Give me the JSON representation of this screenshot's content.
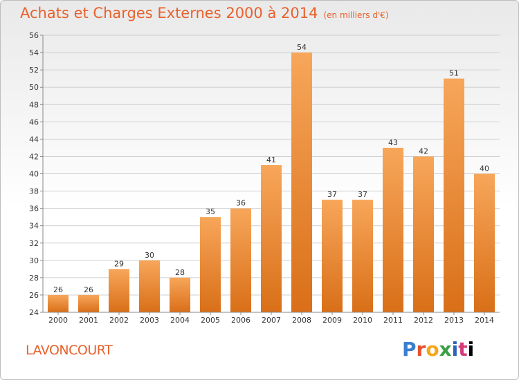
{
  "header": {
    "title": "Achats et Charges Externes 2000 à 2014",
    "subtitle": "(en milliers d'€)"
  },
  "footer": {
    "place": "LAVONCOURT",
    "logo_letters": [
      "P",
      "r",
      "o",
      "x",
      "i",
      "t",
      "i"
    ]
  },
  "colors": {
    "bar_top": "#f7a65a",
    "bar_bottom": "#d96f18",
    "title": "#e8612c",
    "grid": "#cfcfcf"
  },
  "chart_data": {
    "type": "bar",
    "title": "Achats et Charges Externes 2000 à 2014",
    "subtitle": "(en milliers d'€)",
    "xlabel": "",
    "ylabel": "",
    "categories": [
      "2000",
      "2001",
      "2002",
      "2003",
      "2004",
      "2005",
      "2006",
      "2007",
      "2008",
      "2009",
      "2010",
      "2011",
      "2012",
      "2013",
      "2014"
    ],
    "values": [
      26,
      26,
      29,
      30,
      28,
      35,
      36,
      41,
      54,
      37,
      37,
      43,
      42,
      51,
      40
    ],
    "ylim": [
      24,
      56
    ],
    "yticks": [
      24,
      26,
      28,
      30,
      32,
      34,
      36,
      38,
      40,
      42,
      44,
      46,
      48,
      50,
      52,
      54,
      56
    ],
    "grid": true,
    "legend": "none",
    "data_labels": true
  }
}
